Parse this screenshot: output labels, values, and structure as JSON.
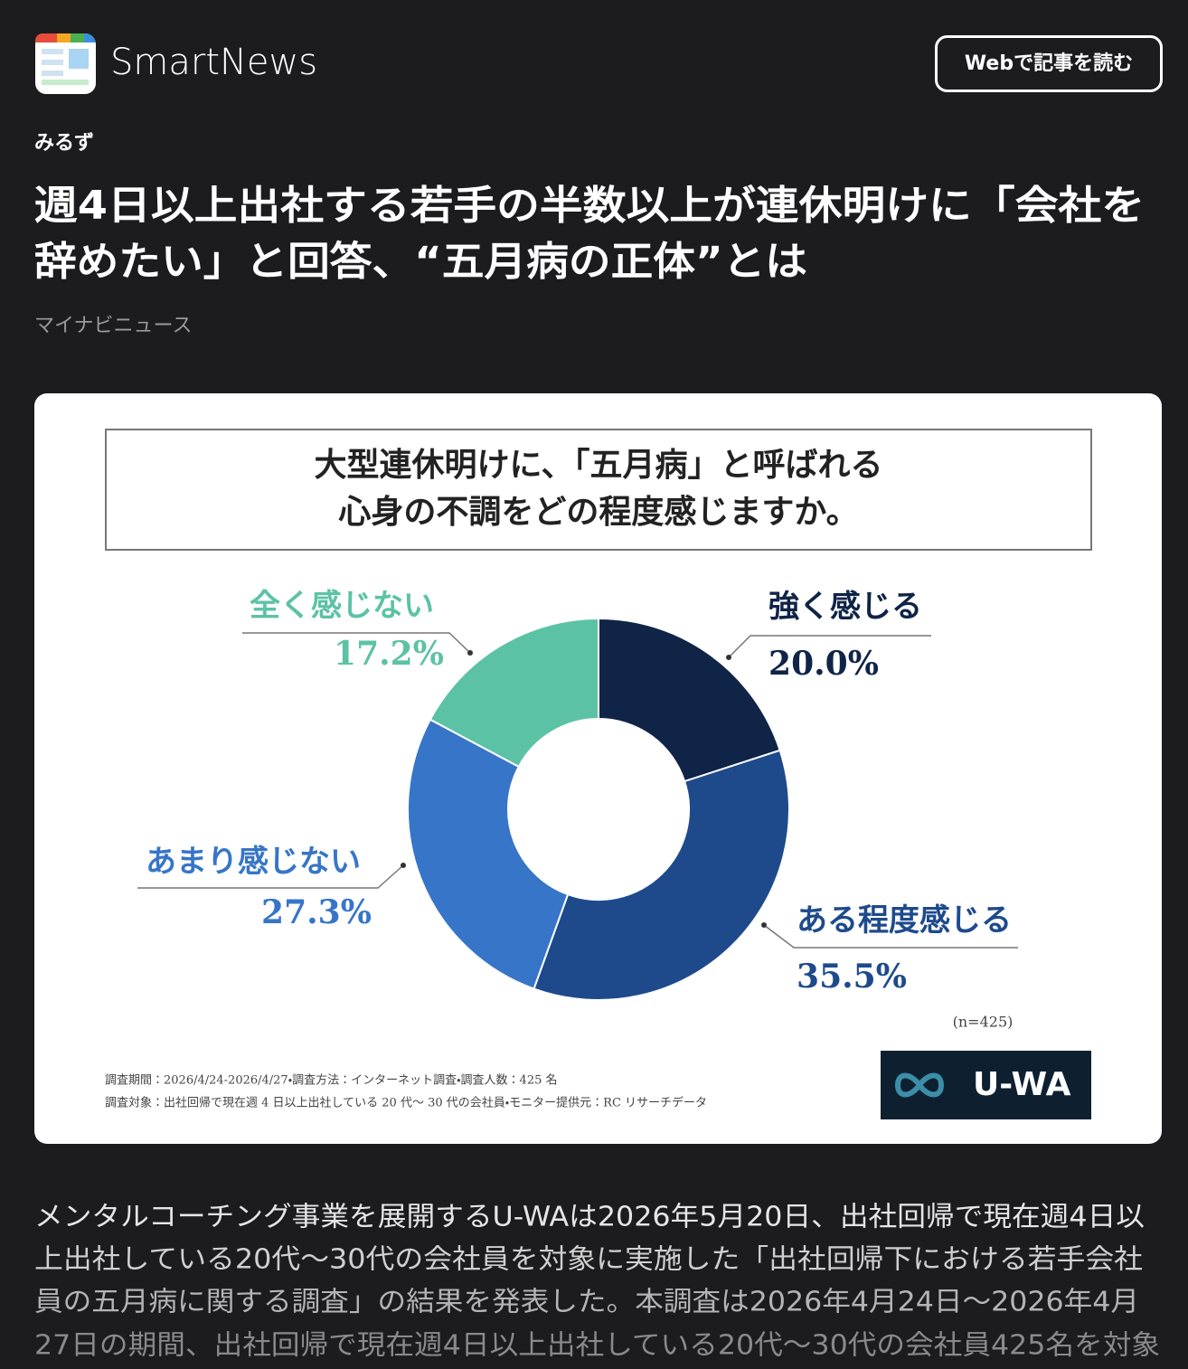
{
  "header": {
    "app_name": "SmartNews",
    "button": "Webで記事を読む"
  },
  "article": {
    "category": "みるず",
    "headline": [
      "週4日以上出社する若手の半数以上が連休明けに「会社を",
      "辞めたい」と回答、“五月病の正体”とは"
    ],
    "source": "マイナビニュース",
    "body": [
      "メンタルコーチング事業を展開するU-WAは2026年5月20日、出社回帰で現在週4日以",
      "上出社している20代～30代の会社員を対象に実施した「出社回帰下における若手会社",
      "員の五月病に関する調査」の結果を発表した。本調査は2026年4月24日～2026年4月",
      "27日の期間、出社回帰で現在週4日以上出社している20代～30代の会社員425名を対象"
    ]
  },
  "chart_data": {
    "type": "donut",
    "title": [
      "大型連休明けに、「五月病」と呼ばれる",
      "心身の不調をどの程度感じますか。"
    ],
    "categories": [
      "強く感じる",
      "ある程度感じる",
      "あまり感じない",
      "全く感じない"
    ],
    "values": [
      20.0,
      35.5,
      27.3,
      17.2
    ],
    "value_labels": [
      "20.0%",
      "35.5%",
      "27.3%",
      "17.2%"
    ],
    "colors": [
      "#0f2447",
      "#1e4a8c",
      "#3775c8",
      "#5cc2a6"
    ],
    "note": "(n=425)",
    "footnotes": [
      "調査期間：2026/4/24-2026/4/27・調査方法：インターネット調査・調査人数：425 名",
      "調査対象：出社回帰で現在週 4 日以上出社している 20 代～ 30 代の会社員・モニター提供元：RC リサーチデータ"
    ],
    "logo": "U-WA"
  }
}
